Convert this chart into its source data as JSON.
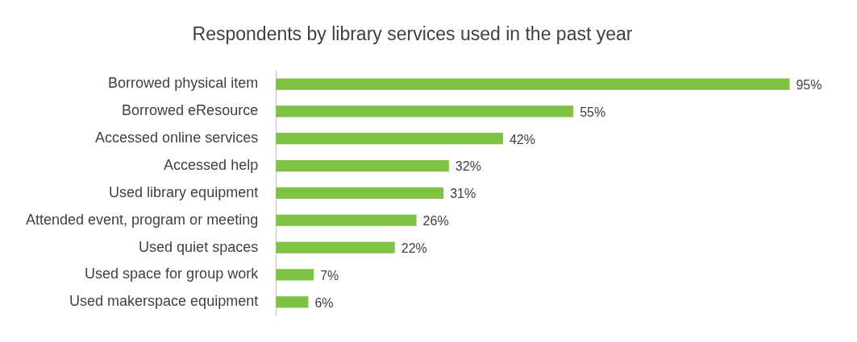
{
  "chart_data": {
    "type": "bar",
    "orientation": "horizontal",
    "title": "Respondents by library services used in the past year",
    "categories": [
      "Borrowed physical item",
      "Borrowed eResource",
      "Accessed online services",
      "Accessed help",
      "Used library equipment",
      "Attended event, program or meeting",
      "Used quiet spaces",
      "Used space for group work",
      "Used makerspace equipment"
    ],
    "values": [
      95,
      55,
      42,
      32,
      31,
      26,
      22,
      7,
      6
    ],
    "value_labels": [
      "95%",
      "55%",
      "42%",
      "32%",
      "31%",
      "26%",
      "22%",
      "7%",
      "6%"
    ],
    "color": "#7dc243",
    "grid": false,
    "legend": false,
    "tick_labels": "y"
  }
}
